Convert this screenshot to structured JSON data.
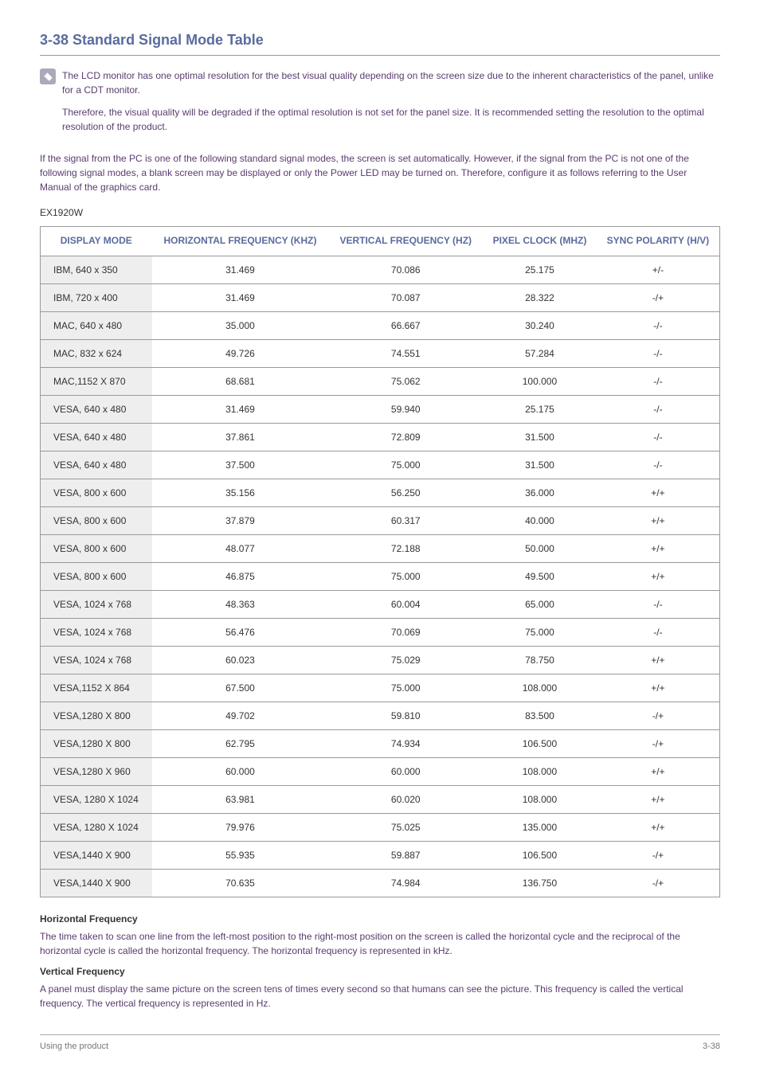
{
  "section": {
    "number": "3-38",
    "title": "Standard Signal Mode Table"
  },
  "note": {
    "para1": "The LCD monitor has one optimal resolution for the best visual quality depending on the screen size due to the inherent characteristics of the panel, unlike for a CDT monitor.",
    "para2": "Therefore, the visual quality will be degraded if the optimal resolution is not set for the panel size. It is recommended setting the resolution to the optimal resolution of the product."
  },
  "intro": "If the signal from the PC is one of the following standard signal modes, the screen is set automatically. However, if the signal from the PC is not one of the following signal modes, a blank screen may be displayed or only the Power LED may be turned on. Therefore, configure it as follows referring to the User Manual of the graphics card.",
  "model": "EX1920W",
  "table": {
    "headers": {
      "c0": "DISPLAY MODE",
      "c1": "HORIZONTAL FREQUENCY (KHZ)",
      "c2": "VERTICAL FREQUENCY (HZ)",
      "c3": "PIXEL CLOCK (MHZ)",
      "c4": "SYNC POLARITY (H/V)"
    },
    "rows": [
      {
        "c0": "IBM, 640 x 350",
        "c1": "31.469",
        "c2": "70.086",
        "c3": "25.175",
        "c4": "+/-"
      },
      {
        "c0": "IBM, 720 x 400",
        "c1": "31.469",
        "c2": "70.087",
        "c3": "28.322",
        "c4": "-/+"
      },
      {
        "c0": "MAC, 640 x 480",
        "c1": "35.000",
        "c2": "66.667",
        "c3": "30.240",
        "c4": "-/-"
      },
      {
        "c0": "MAC, 832 x 624",
        "c1": "49.726",
        "c2": "74.551",
        "c3": "57.284",
        "c4": "-/-"
      },
      {
        "c0": "MAC,1152 X 870",
        "c1": "68.681",
        "c2": "75.062",
        "c3": "100.000",
        "c4": "-/-"
      },
      {
        "c0": "VESA, 640 x 480",
        "c1": "31.469",
        "c2": "59.940",
        "c3": "25.175",
        "c4": "-/-"
      },
      {
        "c0": "VESA, 640 x 480",
        "c1": "37.861",
        "c2": "72.809",
        "c3": "31.500",
        "c4": "-/-"
      },
      {
        "c0": "VESA, 640 x 480",
        "c1": "37.500",
        "c2": "75.000",
        "c3": "31.500",
        "c4": "-/-"
      },
      {
        "c0": "VESA, 800 x 600",
        "c1": "35.156",
        "c2": "56.250",
        "c3": "36.000",
        "c4": "+/+"
      },
      {
        "c0": "VESA, 800 x 600",
        "c1": "37.879",
        "c2": "60.317",
        "c3": "40.000",
        "c4": "+/+"
      },
      {
        "c0": "VESA, 800 x 600",
        "c1": "48.077",
        "c2": "72.188",
        "c3": "50.000",
        "c4": "+/+"
      },
      {
        "c0": "VESA, 800 x 600",
        "c1": "46.875",
        "c2": "75.000",
        "c3": "49.500",
        "c4": "+/+"
      },
      {
        "c0": "VESA, 1024 x 768",
        "c1": "48.363",
        "c2": "60.004",
        "c3": "65.000",
        "c4": "-/-"
      },
      {
        "c0": "VESA, 1024 x 768",
        "c1": "56.476",
        "c2": "70.069",
        "c3": "75.000",
        "c4": "-/-"
      },
      {
        "c0": "VESA, 1024 x 768",
        "c1": "60.023",
        "c2": "75.029",
        "c3": "78.750",
        "c4": "+/+"
      },
      {
        "c0": "VESA,1152 X 864",
        "c1": "67.500",
        "c2": "75.000",
        "c3": "108.000",
        "c4": "+/+"
      },
      {
        "c0": "VESA,1280 X 800",
        "c1": "49.702",
        "c2": "59.810",
        "c3": "83.500",
        "c4": "-/+"
      },
      {
        "c0": "VESA,1280 X 800",
        "c1": "62.795",
        "c2": "74.934",
        "c3": "106.500",
        "c4": "-/+"
      },
      {
        "c0": "VESA,1280 X 960",
        "c1": "60.000",
        "c2": "60.000",
        "c3": "108.000",
        "c4": "+/+"
      },
      {
        "c0": "VESA, 1280 X 1024",
        "c1": "63.981",
        "c2": "60.020",
        "c3": "108.000",
        "c4": "+/+"
      },
      {
        "c0": "VESA, 1280 X 1024",
        "c1": "79.976",
        "c2": "75.025",
        "c3": "135.000",
        "c4": "+/+"
      },
      {
        "c0": "VESA,1440 X 900",
        "c1": "55.935",
        "c2": "59.887",
        "c3": "106.500",
        "c4": "-/+"
      },
      {
        "c0": "VESA,1440 X 900",
        "c1": "70.635",
        "c2": "74.984",
        "c3": "136.750",
        "c4": "-/+"
      }
    ]
  },
  "hf": {
    "title": "Horizontal Frequency",
    "text": "The time taken to scan one line from the left-most position to the right-most position on the screen is called the horizontal cycle and the reciprocal of the horizontal cycle is called the horizontal frequency. The horizontal frequency is represented in kHz."
  },
  "vf": {
    "title": "Vertical Frequency",
    "text": "A panel must display the same picture on the screen tens of times every second so that humans can see the picture. This frequency is called the vertical frequency. The vertical frequency is represented in Hz."
  },
  "footer": {
    "left": "Using the product",
    "right": "3-38"
  },
  "style": {
    "heading_color": "#5a6b9e",
    "body_text_color": "#5a3b6e",
    "border_color": "#999",
    "mode_bg": "#eee"
  }
}
